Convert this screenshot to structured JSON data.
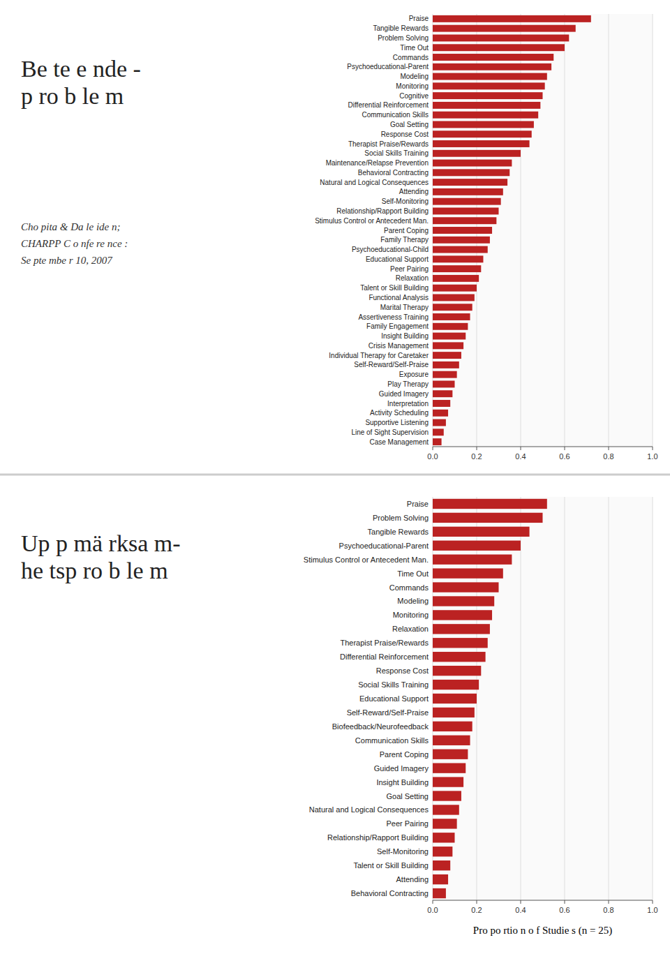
{
  "chart_data": [
    {
      "type": "bar",
      "orientation": "horizontal",
      "title": "Be te e nde -\np ro b le m",
      "subtitle": "Cho pita & Da le ide n;\nCHARPP C o nfe re nce :\nSe pte mbe r 10, 2007",
      "categories": [
        "Praise",
        "Tangible Rewards",
        "Problem Solving",
        "Time Out",
        "Commands",
        "Psychoeducational-Parent",
        "Modeling",
        "Monitoring",
        "Cognitive",
        "Differential Reinforcement",
        "Communication Skills",
        "Goal Setting",
        "Response Cost",
        "Therapist Praise/Rewards",
        "Social Skills Training",
        "Maintenance/Relapse Prevention",
        "Behavioral Contracting",
        "Natural and Logical Consequences",
        "Attending",
        "Self-Monitoring",
        "Relationship/Rapport Building",
        "Stimulus Control or Antecedent Man.",
        "Parent Coping",
        "Family Therapy",
        "Psychoeducational-Child",
        "Educational Support",
        "Peer Pairing",
        "Relaxation",
        "Talent or Skill Building",
        "Functional Analysis",
        "Marital Therapy",
        "Assertiveness Training",
        "Family Engagement",
        "Insight Building",
        "Crisis Management",
        "Individual Therapy for Caretaker",
        "Self-Reward/Self-Praise",
        "Exposure",
        "Play Therapy",
        "Guided Imagery",
        "Interpretation",
        "Activity Scheduling",
        "Supportive Listening",
        "Line of Sight Supervision",
        "Case Management"
      ],
      "values": [
        0.72,
        0.65,
        0.62,
        0.6,
        0.55,
        0.54,
        0.52,
        0.51,
        0.5,
        0.49,
        0.48,
        0.46,
        0.45,
        0.44,
        0.4,
        0.36,
        0.35,
        0.34,
        0.32,
        0.31,
        0.3,
        0.29,
        0.27,
        0.26,
        0.25,
        0.23,
        0.22,
        0.21,
        0.2,
        0.19,
        0.18,
        0.17,
        0.16,
        0.15,
        0.14,
        0.13,
        0.12,
        0.11,
        0.1,
        0.09,
        0.08,
        0.07,
        0.06,
        0.05,
        0.04
      ],
      "color": "#bb2222",
      "xlim": [
        0,
        1.0
      ],
      "xticks": [
        {
          "value": 0,
          "label": "0.0"
        },
        0.2,
        0.4,
        0.6,
        0.8,
        {
          "value": 1.0,
          "label": "1.0"
        }
      ],
      "grid": true
    },
    {
      "type": "bar",
      "orientation": "horizontal",
      "title": "Up p mä rksa m-\nhe tsp ro b le m",
      "xlabel": "Pro po rtio n o f Studie s (n = 25)",
      "categories": [
        "Praise",
        "Problem Solving",
        "Tangible Rewards",
        "Psychoeducational-Parent",
        "Stimulus Control or Antecedent Man.",
        "Time Out",
        "Commands",
        "Modeling",
        "Monitoring",
        "Relaxation",
        "Therapist Praise/Rewards",
        "Differential Reinforcement",
        "Response Cost",
        "Social Skills Training",
        "Educational Support",
        "Self-Reward/Self-Praise",
        "Biofeedback/Neurofeedback",
        "Communication Skills",
        "Parent Coping",
        "Guided Imagery",
        "Insight Building",
        "Goal Setting",
        "Natural and Logical Consequences",
        "Peer Pairing",
        "Relationship/Rapport Building",
        "Self-Monitoring",
        "Talent or Skill Building",
        "Attending",
        "Behavioral Contracting"
      ],
      "values": [
        0.52,
        0.5,
        0.44,
        0.4,
        0.36,
        0.32,
        0.3,
        0.28,
        0.27,
        0.26,
        0.25,
        0.24,
        0.22,
        0.21,
        0.2,
        0.19,
        0.18,
        0.17,
        0.16,
        0.15,
        0.14,
        0.13,
        0.12,
        0.11,
        0.1,
        0.09,
        0.08,
        0.07,
        0.06
      ],
      "color": "#bb2222",
      "xlim": [
        0,
        1.0
      ],
      "xticks": [
        {
          "value": 0,
          "label": "0.0"
        },
        0.2,
        0.4,
        0.6,
        0.8,
        {
          "value": 1.0,
          "label": "1.0"
        }
      ],
      "grid": true
    }
  ]
}
